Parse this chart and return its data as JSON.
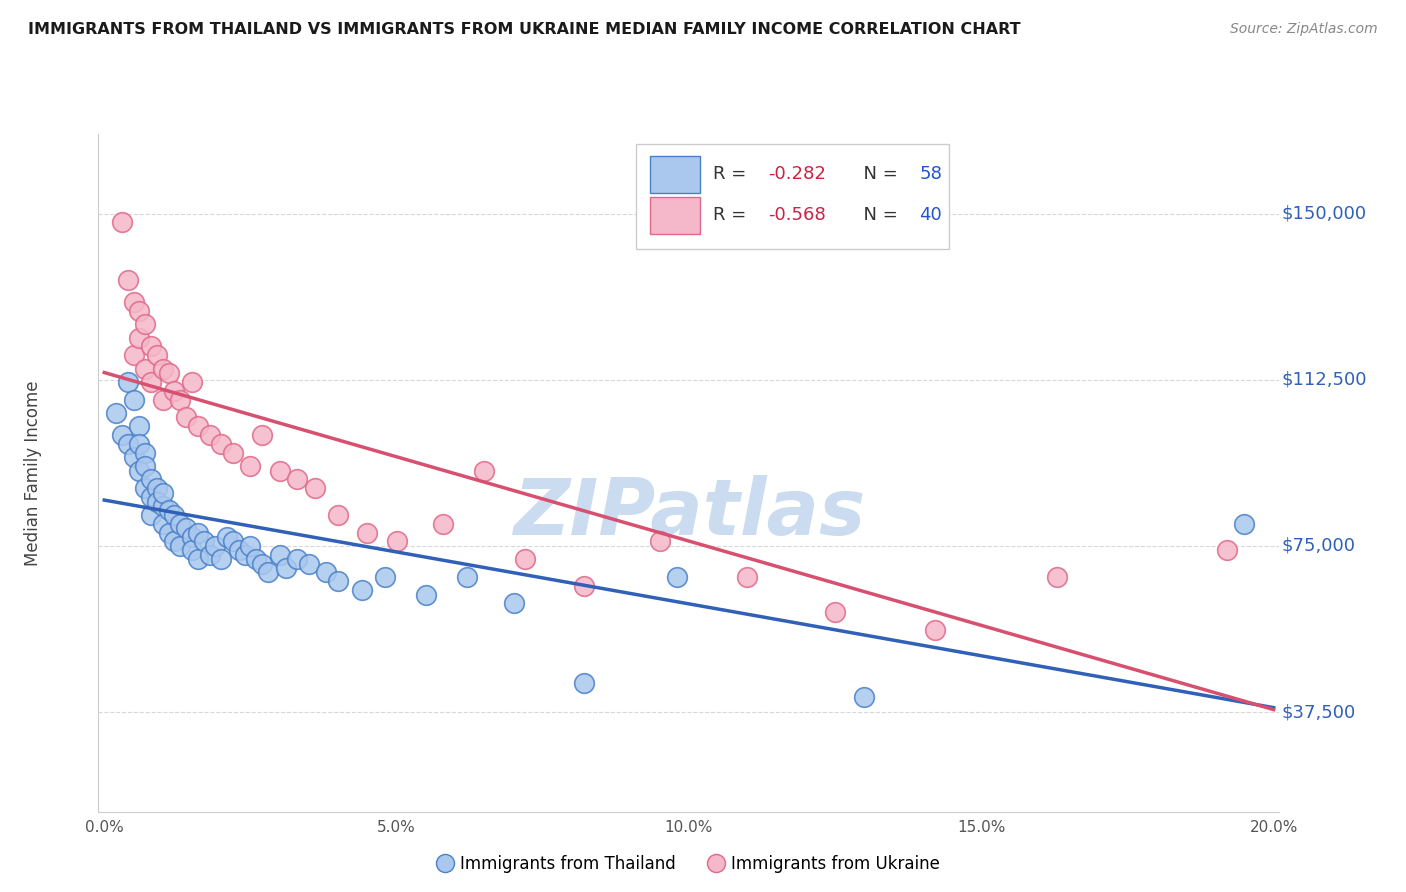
{
  "title": "IMMIGRANTS FROM THAILAND VS IMMIGRANTS FROM UKRAINE MEDIAN FAMILY INCOME CORRELATION CHART",
  "source": "Source: ZipAtlas.com",
  "ylabel": "Median Family Income",
  "y_ticks": [
    37500,
    75000,
    112500,
    150000
  ],
  "y_tick_labels": [
    "$37,500",
    "$75,000",
    "$112,500",
    "$150,000"
  ],
  "xlim": [
    -0.001,
    0.201
  ],
  "ylim": [
    15000,
    168000
  ],
  "thailand_R": -0.282,
  "thailand_N": 58,
  "ukraine_R": -0.568,
  "ukraine_N": 40,
  "thailand_color": "#aac8ee",
  "ukraine_color": "#f5b8ca",
  "thailand_edge_color": "#4a80c8",
  "ukraine_edge_color": "#e06888",
  "thailand_line_color": "#3060b8",
  "ukraine_line_color": "#d85070",
  "background_color": "#ffffff",
  "grid_color": "#d8d8d8",
  "watermark": "ZIPatlas",
  "watermark_color": "#ccdcf0",
  "title_color": "#1a1a1a",
  "source_color": "#888888",
  "ylabel_color": "#444444",
  "tick_color_right": "#3060b8",
  "legend_R_color": "#cc2244",
  "legend_N_color": "#2255cc",
  "thailand_x": [
    0.002,
    0.003,
    0.004,
    0.004,
    0.005,
    0.005,
    0.006,
    0.006,
    0.006,
    0.007,
    0.007,
    0.007,
    0.008,
    0.008,
    0.008,
    0.009,
    0.009,
    0.01,
    0.01,
    0.01,
    0.011,
    0.011,
    0.012,
    0.012,
    0.013,
    0.013,
    0.014,
    0.015,
    0.015,
    0.016,
    0.016,
    0.017,
    0.018,
    0.019,
    0.02,
    0.021,
    0.022,
    0.023,
    0.024,
    0.025,
    0.026,
    0.027,
    0.028,
    0.03,
    0.031,
    0.033,
    0.035,
    0.038,
    0.04,
    0.044,
    0.048,
    0.055,
    0.062,
    0.07,
    0.082,
    0.098,
    0.13,
    0.195
  ],
  "thailand_y": [
    105000,
    100000,
    112000,
    98000,
    108000,
    95000,
    102000,
    92000,
    98000,
    96000,
    88000,
    93000,
    86000,
    90000,
    82000,
    88000,
    85000,
    84000,
    80000,
    87000,
    83000,
    78000,
    82000,
    76000,
    80000,
    75000,
    79000,
    77000,
    74000,
    78000,
    72000,
    76000,
    73000,
    75000,
    72000,
    77000,
    76000,
    74000,
    73000,
    75000,
    72000,
    71000,
    69000,
    73000,
    70000,
    72000,
    71000,
    69000,
    67000,
    65000,
    68000,
    64000,
    68000,
    62000,
    44000,
    68000,
    41000,
    80000
  ],
  "ukraine_x": [
    0.003,
    0.004,
    0.005,
    0.005,
    0.006,
    0.006,
    0.007,
    0.007,
    0.008,
    0.008,
    0.009,
    0.01,
    0.01,
    0.011,
    0.012,
    0.013,
    0.014,
    0.015,
    0.016,
    0.018,
    0.02,
    0.022,
    0.025,
    0.027,
    0.03,
    0.033,
    0.036,
    0.04,
    0.045,
    0.05,
    0.058,
    0.065,
    0.072,
    0.082,
    0.095,
    0.11,
    0.125,
    0.142,
    0.163,
    0.192
  ],
  "ukraine_y": [
    148000,
    135000,
    130000,
    118000,
    128000,
    122000,
    125000,
    115000,
    120000,
    112000,
    118000,
    115000,
    108000,
    114000,
    110000,
    108000,
    104000,
    112000,
    102000,
    100000,
    98000,
    96000,
    93000,
    100000,
    92000,
    90000,
    88000,
    82000,
    78000,
    76000,
    80000,
    92000,
    72000,
    66000,
    76000,
    68000,
    60000,
    56000,
    68000,
    74000
  ]
}
